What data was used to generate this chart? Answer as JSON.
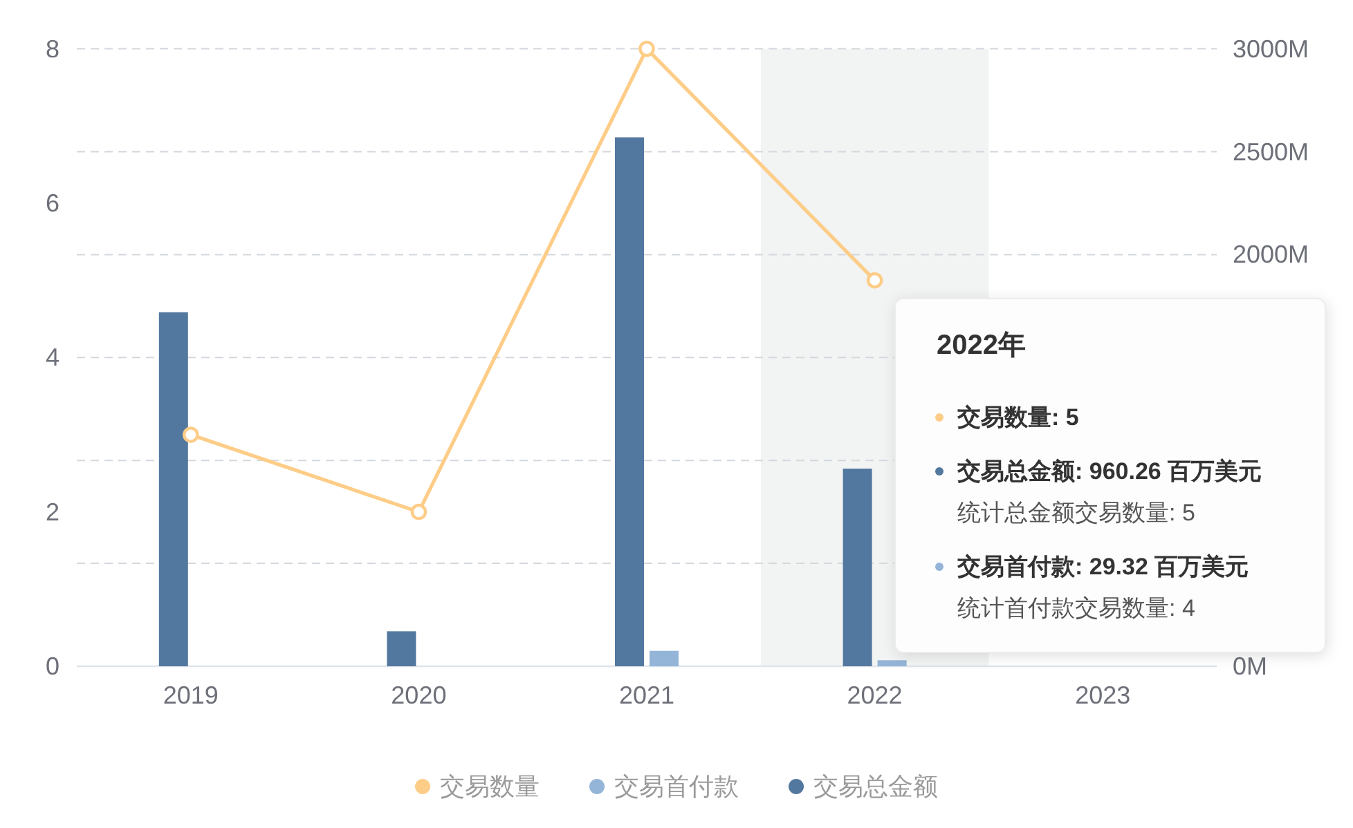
{
  "chart_data": {
    "type": "bar",
    "categories": [
      "2019",
      "2020",
      "2021",
      "2022",
      "2023"
    ],
    "series": [
      {
        "name": "交易数量",
        "type": "line",
        "axis": "y",
        "color": "#fdcd88",
        "values": [
          3,
          2,
          8,
          5,
          null
        ]
      },
      {
        "name": "交易首付款",
        "type": "bar",
        "axis": "y2",
        "color": "#94b4d8",
        "values": [
          null,
          null,
          75,
          29.32,
          null
        ]
      },
      {
        "name": "交易总金额",
        "type": "bar",
        "axis": "y2",
        "color": "#53789f",
        "values": [
          1720,
          170,
          2570,
          960.26,
          null
        ]
      }
    ],
    "ylim": [
      0,
      8
    ],
    "yticks": [
      0,
      2,
      4,
      6,
      8
    ],
    "y2lim": [
      0,
      3000
    ],
    "y2ticks": [
      {
        "value": 0,
        "label": "0M"
      },
      {
        "value": 500,
        "label": null
      },
      {
        "value": 1000,
        "label": null
      },
      {
        "value": 1500,
        "label": null
      },
      {
        "value": 2000,
        "label": "2000M"
      },
      {
        "value": 2500,
        "label": "2500M"
      },
      {
        "value": 3000,
        "label": "3000M"
      }
    ],
    "grid": "y2",
    "legend": "bottom",
    "marker": "circle",
    "bands": [
      {
        "axis": "x",
        "from": "2022",
        "to": "2022",
        "color": "#f2f4f3"
      }
    ],
    "annotations": [
      "2022年",
      "交易数量: 5",
      "交易总金额: 960.26 百万美元",
      "统计总金额交易数量: 5",
      "交易首付款: 29.32 百万美元",
      "统计首付款交易数量: 4"
    ]
  }
}
